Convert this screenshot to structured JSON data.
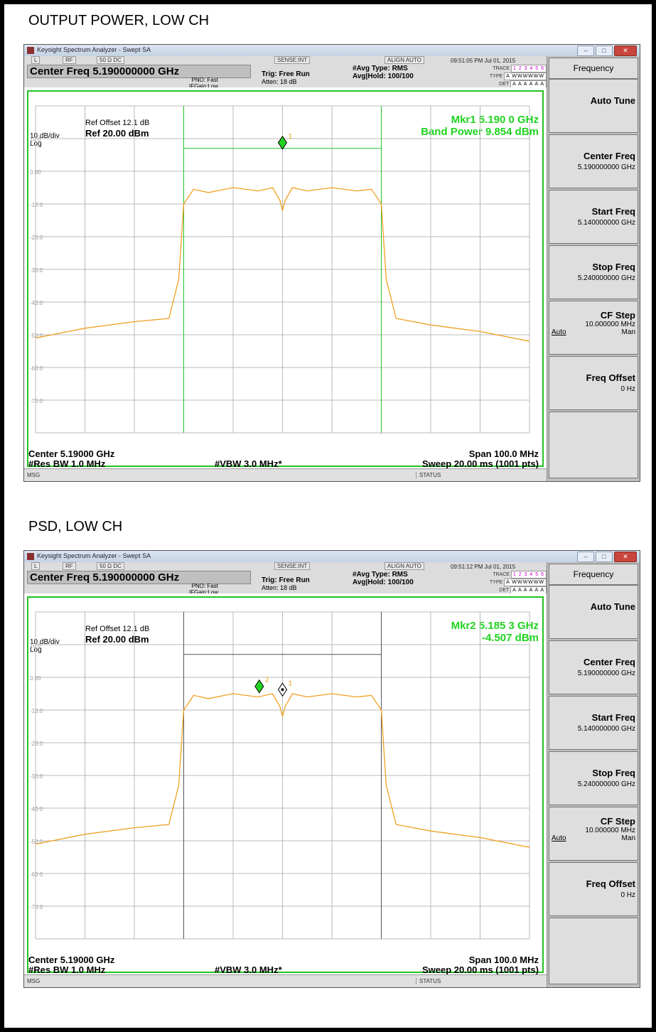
{
  "screens": [
    {
      "caption": "OUTPUT POWER, LOW CH",
      "window_title": "Keysight Spectrum Analyzer - Swept SA",
      "status": {
        "l": "L",
        "rf": "RF",
        "ohm": "50 Ω  DC",
        "sense": "SENSE:INT",
        "align": "ALIGN AUTO"
      },
      "timestamp": "09:51:05 PM Jul 01, 2015",
      "center_freq_title": "Center Freq 5.190000000 GHz",
      "pno": "PNO: Fast",
      "ifgain": "IFGain:Low",
      "trig": "Trig: Free Run",
      "atten": "Atten: 18 dB",
      "avg_type": "#Avg Type: RMS",
      "avg_hold": "Avg|Hold: 100/100",
      "trace_label": "TRACE",
      "trace_digits": "1 2 3 4 5 6",
      "type_label": "TYPE",
      "type_value": "A WWWWWW",
      "det_label": "DET",
      "det_value": "A A A A A A",
      "ref_offset": "Ref Offset 12.1 dB",
      "scale": "10 dB/div",
      "ref_level": "Ref 20.00 dBm",
      "log": "Log",
      "marker_line1": "Mkr1 5.190 0 GHz",
      "marker_line2": "Band Power 9.854 dBm",
      "center_bottom": "Center 5.19000 GHz",
      "span": "Span 100.0 MHz",
      "res_bw": "#Res BW 1.0 MHz",
      "vbw": "#VBW 3.0 MHz*",
      "sweep": "Sweep  20.00 ms (1001 pts)",
      "msg": "MSG",
      "status_lbl": "STATUS",
      "y_ticks": [
        "10.0",
        "0.00",
        "-10.0",
        "-20.0",
        "-30.0",
        "-40.0",
        "-50.0",
        "-60.0",
        "-70.0"
      ],
      "markers": [
        {
          "label": "1",
          "x_mhz": 5190.0,
          "y_dbm": 7.0,
          "active": true
        }
      ],
      "band_lines": {
        "color": "#22c322",
        "x_mhz": [
          5170.0,
          5210.0
        ],
        "y_dbm": 7.0
      }
    },
    {
      "caption": "PSD, LOW CH",
      "window_title": "Keysight Spectrum Analyzer - Swept SA",
      "status": {
        "l": "L",
        "rf": "RF",
        "ohm": "50 Ω  DC",
        "sense": "SENSE:INT",
        "align": "ALIGN AUTO"
      },
      "timestamp": "09:51:12 PM Jul 01, 2015",
      "center_freq_title": "Center Freq 5.190000000 GHz",
      "pno": "PNO: Fast",
      "ifgain": "IFGain:Low",
      "trig": "Trig: Free Run",
      "atten": "Atten: 18 dB",
      "avg_type": "#Avg Type: RMS",
      "avg_hold": "Avg|Hold: 100/100",
      "trace_label": "TRACE",
      "trace_digits": "1 2 3 4 5 6",
      "type_label": "TYPE",
      "type_value": "A WWWWWW",
      "det_label": "DET",
      "det_value": "A A A A A A",
      "ref_offset": "Ref Offset 12.1 dB",
      "scale": "10 dB/div",
      "ref_level": "Ref 20.00 dBm",
      "log": "Log",
      "marker_line1": "Mkr2 5.185 3 GHz",
      "marker_line2": "-4.507 dBm",
      "center_bottom": "Center 5.19000 GHz",
      "span": "Span 100.0 MHz",
      "res_bw": "#Res BW 1.0 MHz",
      "vbw": "#VBW 3.0 MHz*",
      "sweep": "Sweep  20.00 ms (1001 pts)",
      "msg": "MSG",
      "status_lbl": "STATUS",
      "y_ticks": [
        "10.0",
        "0.00",
        "-10.0",
        "-20.0",
        "-30.0",
        "-40.0",
        "-50.0",
        "-60.0",
        "-70.0"
      ],
      "markers": [
        {
          "label": "2",
          "x_mhz": 5185.3,
          "y_dbm": -4.507,
          "active": true
        },
        {
          "label": "1",
          "x_mhz": 5190.0,
          "y_dbm": -5.5,
          "active": false
        }
      ],
      "band_lines": {
        "color": "#555555",
        "x_mhz": [
          5170.0,
          5210.0
        ],
        "y_dbm": 7.0
      }
    }
  ],
  "softkeys": {
    "menu_title": "Frequency",
    "auto_tune": "Auto Tune",
    "center_freq": "Center Freq",
    "center_freq_val": "5.190000000 GHz",
    "start_freq": "Start Freq",
    "start_freq_val": "5.140000000 GHz",
    "stop_freq": "Stop Freq",
    "stop_freq_val": "5.240000000 GHz",
    "cf_step": "CF Step",
    "cf_step_val": "10.000000 MHz",
    "auto": "Auto",
    "man": "Man",
    "freq_offset": "Freq Offset",
    "freq_offset_val": "0 Hz"
  },
  "chart_data": {
    "type": "line",
    "xlabel": "",
    "ylabel": "",
    "xlim_mhz": [
      5140,
      5240
    ],
    "ylim_dbm": [
      -80,
      20
    ],
    "x_mhz": [
      5140,
      5150,
      5160,
      5167,
      5169,
      5170,
      5172,
      5175,
      5180,
      5185,
      5188,
      5189.5,
      5190,
      5190.5,
      5192,
      5195,
      5200,
      5205,
      5208,
      5210,
      5211,
      5213,
      5220,
      5230,
      5240
    ],
    "series": [
      {
        "values": [
          -51,
          -48,
          -46,
          -45,
          -33,
          -10,
          -5.5,
          -6.5,
          -5,
          -6,
          -5,
          -9,
          -12,
          -9,
          -5,
          -6,
          -5,
          -6,
          -5.5,
          -10,
          -33,
          -45,
          -47,
          -49,
          -52
        ]
      }
    ],
    "trace_color": "#f0a020",
    "grid": true
  }
}
